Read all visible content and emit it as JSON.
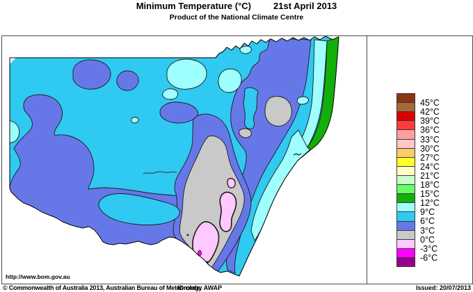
{
  "header": {
    "title": "Minimum Temperature (°C)",
    "date": "21st April 2013",
    "subtitle": "Product of the National Climate Centre"
  },
  "map": {
    "url": "http://www.bom.gov.au"
  },
  "legend": {
    "labels": [
      "45°C",
      "42°C",
      "39°C",
      "36°C",
      "33°C",
      "30°C",
      "27°C",
      "24°C",
      "21°C",
      "18°C",
      "15°C",
      "12°C",
      "9°C",
      "6°C",
      "3°C",
      "0°C",
      "-3°C",
      "-6°C"
    ],
    "colors": [
      "#8C3413",
      "#A96734",
      "#D80000",
      "#FF3B3B",
      "#FF9E9E",
      "#FFC8C8",
      "#FFCB67",
      "#FFFF29",
      "#FFFFC9",
      "#C9FFC9",
      "#66FF66",
      "#12AF0A",
      "#9FFFFF",
      "#30C9F1",
      "#6678E8",
      "#C9C9C9",
      "#FFC8FF",
      "#FF00FF",
      "#96008D"
    ]
  },
  "footer": {
    "copyright": "© Commonwealth of Australia 2013, Australian Bureau of Meteorology",
    "id_code": "ID code: AWAP",
    "issued": "Issued: 20/07/2013"
  }
}
